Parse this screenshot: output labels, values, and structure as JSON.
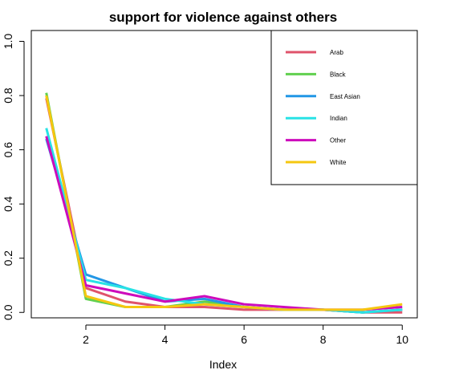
{
  "chart_data": {
    "type": "line",
    "title": "support for violence against others",
    "xlabel": "Index",
    "ylabel": "",
    "x": [
      1,
      2,
      3,
      4,
      5,
      6,
      7,
      8,
      9,
      10
    ],
    "xlim": [
      0.62,
      10.38
    ],
    "ylim": [
      -0.02,
      1.04
    ],
    "xticks": [
      2,
      4,
      6,
      8,
      10
    ],
    "yticks": [
      0.0,
      0.2,
      0.4,
      0.6,
      0.8,
      1.0
    ],
    "ytick_labels": [
      "0.0",
      "0.2",
      "0.4",
      "0.6",
      "0.8",
      "1.0"
    ],
    "legend_position": "top-right",
    "grid": false,
    "series": [
      {
        "name": "Arab",
        "color": "#df536b",
        "values": [
          0.79,
          0.09,
          0.04,
          0.02,
          0.02,
          0.01,
          0.01,
          0.01,
          0.0,
          0.0
        ]
      },
      {
        "name": "Black",
        "color": "#61d04f",
        "values": [
          0.81,
          0.05,
          0.02,
          0.02,
          0.04,
          0.02,
          0.01,
          0.01,
          0.0,
          0.01
        ]
      },
      {
        "name": "East Asian",
        "color": "#2297e6",
        "values": [
          0.64,
          0.14,
          0.09,
          0.04,
          0.05,
          0.02,
          0.01,
          0.01,
          0.0,
          0.01
        ]
      },
      {
        "name": "Indian",
        "color": "#28e2e5",
        "values": [
          0.68,
          0.12,
          0.09,
          0.05,
          0.03,
          0.02,
          0.01,
          0.01,
          0.0,
          0.01
        ]
      },
      {
        "name": "Other",
        "color": "#cd0bbc",
        "values": [
          0.65,
          0.1,
          0.07,
          0.04,
          0.06,
          0.03,
          0.02,
          0.01,
          0.01,
          0.02
        ]
      },
      {
        "name": "White",
        "color": "#f5c710",
        "values": [
          0.8,
          0.06,
          0.02,
          0.02,
          0.03,
          0.02,
          0.01,
          0.01,
          0.01,
          0.03
        ]
      }
    ]
  }
}
